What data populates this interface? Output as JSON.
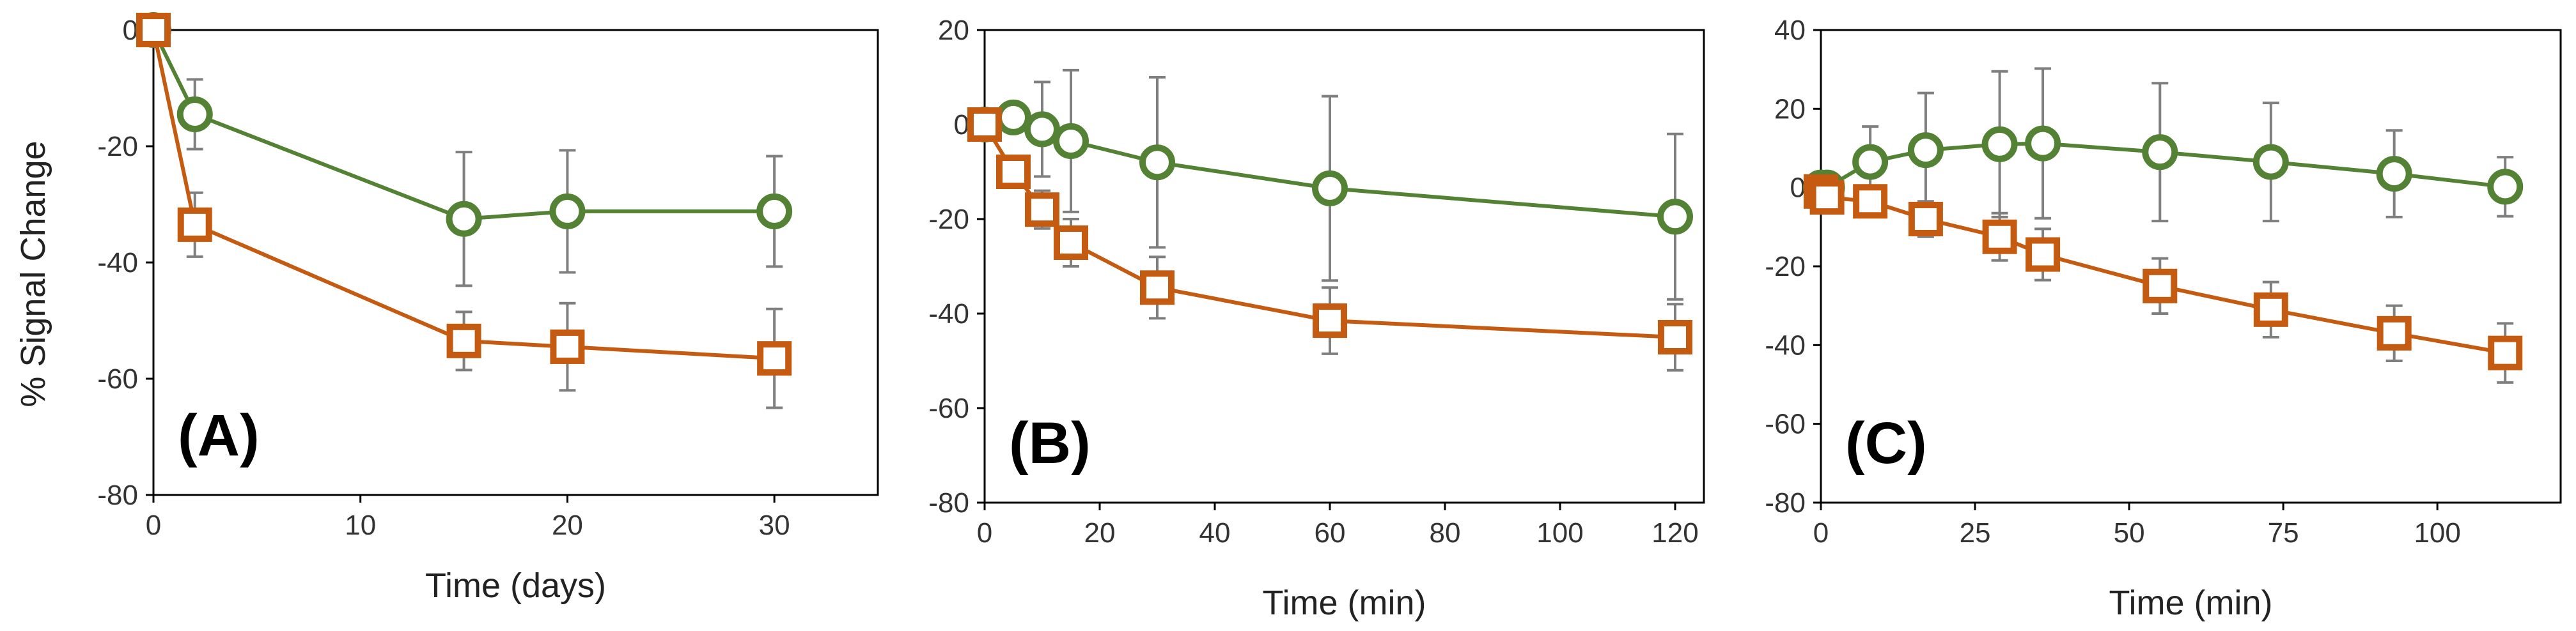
{
  "colors": {
    "green": "#548235",
    "orange": "#C55A11",
    "error": "#7F7F7F",
    "axis": "#000000"
  },
  "chart_data": [
    {
      "type": "line",
      "panel_label": "(A)",
      "xlabel": "Time (days)",
      "ylabel": "% Signal  Change",
      "xlim": [
        0,
        35
      ],
      "ylim": [
        -80,
        0
      ],
      "xticks": [
        0,
        10,
        20,
        30
      ],
      "yticks": [
        0,
        -20,
        -40,
        -60,
        -80
      ],
      "series": [
        {
          "name": "green-circles",
          "marker": "circle",
          "x": [
            0,
            2,
            15,
            20,
            30
          ],
          "y": [
            0,
            -14.5,
            -32.5,
            -31.2,
            -31.2
          ],
          "err": [
            0,
            6,
            11.5,
            10.5,
            9.5
          ]
        },
        {
          "name": "orange-squares",
          "marker": "square",
          "x": [
            0,
            2,
            15,
            20,
            30
          ],
          "y": [
            0,
            -33.5,
            -53.5,
            -54.5,
            -56.5
          ],
          "err": [
            0,
            5.5,
            5,
            7.5,
            8.5
          ]
        }
      ]
    },
    {
      "type": "line",
      "panel_label": "(B)",
      "xlabel": "Time (min)",
      "ylabel": "",
      "xlim": [
        0,
        125
      ],
      "ylim": [
        -80,
        20
      ],
      "xticks": [
        0,
        20,
        40,
        60,
        80,
        100,
        120
      ],
      "yticks": [
        20,
        0,
        -20,
        -40,
        -60,
        -80
      ],
      "series": [
        {
          "name": "green-circles",
          "marker": "circle",
          "x": [
            0,
            5,
            10,
            15,
            30,
            60,
            120
          ],
          "y": [
            0,
            1.5,
            -1,
            -3.5,
            -8,
            -13.5,
            -19.5
          ],
          "err": [
            0,
            3,
            10,
            15,
            18,
            19.5,
            17.5
          ]
        },
        {
          "name": "orange-squares",
          "marker": "square",
          "x": [
            0,
            5,
            10,
            15,
            30,
            60,
            120
          ],
          "y": [
            0,
            -10,
            -18,
            -25,
            -34.5,
            -41.5,
            -45
          ],
          "err": [
            0,
            3,
            4,
            5,
            6.5,
            7,
            7
          ]
        }
      ]
    },
    {
      "type": "line",
      "panel_label": "(C)",
      "xlabel": "Time (min)",
      "ylabel": "",
      "xlim": [
        0,
        120
      ],
      "ylim": [
        -80,
        40
      ],
      "xticks": [
        0,
        25,
        50,
        75,
        100
      ],
      "yticks": [
        40,
        20,
        0,
        -20,
        -40,
        -60,
        -80
      ],
      "series": [
        {
          "name": "green-circles",
          "marker": "circle",
          "x": [
            0,
            1,
            8,
            17,
            29,
            36,
            55,
            73,
            93,
            111
          ],
          "y": [
            0,
            0,
            6.5,
            9.5,
            11,
            11.2,
            9,
            6.5,
            3.5,
            0.2
          ],
          "err": [
            0,
            0,
            9,
            14.5,
            18.5,
            19,
            17.5,
            15,
            11,
            7.5
          ]
        },
        {
          "name": "orange-squares",
          "marker": "square",
          "x": [
            0,
            1,
            8,
            17,
            29,
            36,
            55,
            73,
            93,
            111
          ],
          "y": [
            -1,
            -2.5,
            -3.5,
            -8,
            -12.5,
            -17,
            -25,
            -31,
            -37,
            -42
          ],
          "err": [
            0,
            0,
            0,
            4.5,
            6,
            6.5,
            7,
            7,
            7,
            7.5
          ]
        }
      ]
    }
  ]
}
